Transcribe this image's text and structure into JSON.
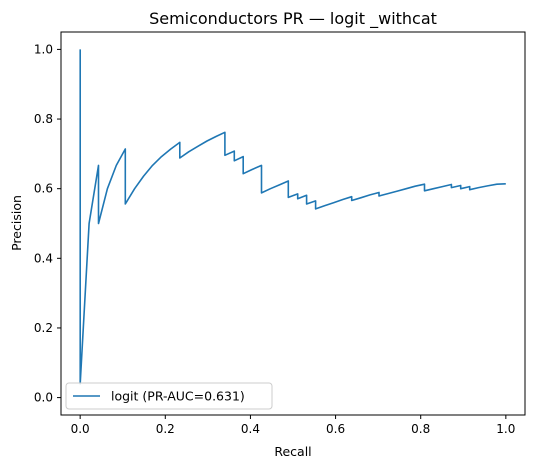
{
  "chart_data": {
    "type": "line",
    "title": "Semiconductors PR — logit _withcat",
    "xlabel": "Recall",
    "ylabel": "Precision",
    "xlim": [
      -0.045,
      1.045
    ],
    "ylim": [
      -0.05,
      1.05
    ],
    "xticks": [
      0.0,
      0.2,
      0.4,
      0.6,
      0.8,
      1.0
    ],
    "yticks": [
      0.0,
      0.2,
      0.4,
      0.6,
      0.8,
      1.0
    ],
    "grid": false,
    "legend_position": "lower-left",
    "series": [
      {
        "name": "logit (PR-AUC=0.631)",
        "color": "#1f77b4",
        "points": [
          [
            0.0,
            1.0
          ],
          [
            0.0,
            0.5
          ],
          [
            0.0,
            0.04
          ],
          [
            0.021,
            0.5
          ],
          [
            0.043,
            0.667
          ],
          [
            0.043,
            0.5
          ],
          [
            0.064,
            0.6
          ],
          [
            0.085,
            0.667
          ],
          [
            0.106,
            0.714
          ],
          [
            0.106,
            0.556
          ],
          [
            0.128,
            0.6
          ],
          [
            0.149,
            0.636
          ],
          [
            0.17,
            0.667
          ],
          [
            0.191,
            0.692
          ],
          [
            0.213,
            0.714
          ],
          [
            0.234,
            0.733
          ],
          [
            0.234,
            0.688
          ],
          [
            0.255,
            0.706
          ],
          [
            0.277,
            0.722
          ],
          [
            0.298,
            0.737
          ],
          [
            0.319,
            0.75
          ],
          [
            0.34,
            0.762
          ],
          [
            0.34,
            0.696
          ],
          [
            0.362,
            0.708
          ],
          [
            0.362,
            0.68
          ],
          [
            0.383,
            0.692
          ],
          [
            0.383,
            0.643
          ],
          [
            0.404,
            0.655
          ],
          [
            0.426,
            0.667
          ],
          [
            0.426,
            0.588
          ],
          [
            0.447,
            0.6
          ],
          [
            0.468,
            0.611
          ],
          [
            0.489,
            0.622
          ],
          [
            0.489,
            0.575
          ],
          [
            0.511,
            0.585
          ],
          [
            0.511,
            0.571
          ],
          [
            0.532,
            0.581
          ],
          [
            0.532,
            0.556
          ],
          [
            0.553,
            0.565
          ],
          [
            0.553,
            0.542
          ],
          [
            0.574,
            0.551
          ],
          [
            0.596,
            0.56
          ],
          [
            0.617,
            0.569
          ],
          [
            0.638,
            0.577
          ],
          [
            0.638,
            0.566
          ],
          [
            0.66,
            0.574
          ],
          [
            0.681,
            0.582
          ],
          [
            0.702,
            0.589
          ],
          [
            0.702,
            0.579
          ],
          [
            0.723,
            0.586
          ],
          [
            0.745,
            0.593
          ],
          [
            0.766,
            0.6
          ],
          [
            0.787,
            0.607
          ],
          [
            0.809,
            0.613
          ],
          [
            0.809,
            0.594
          ],
          [
            0.83,
            0.6
          ],
          [
            0.851,
            0.606
          ],
          [
            0.872,
            0.612
          ],
          [
            0.872,
            0.603
          ],
          [
            0.894,
            0.609
          ],
          [
            0.894,
            0.6
          ],
          [
            0.915,
            0.606
          ],
          [
            0.915,
            0.597
          ],
          [
            0.936,
            0.603
          ],
          [
            0.957,
            0.608
          ],
          [
            0.979,
            0.613
          ],
          [
            1.0,
            0.614
          ]
        ]
      }
    ]
  }
}
